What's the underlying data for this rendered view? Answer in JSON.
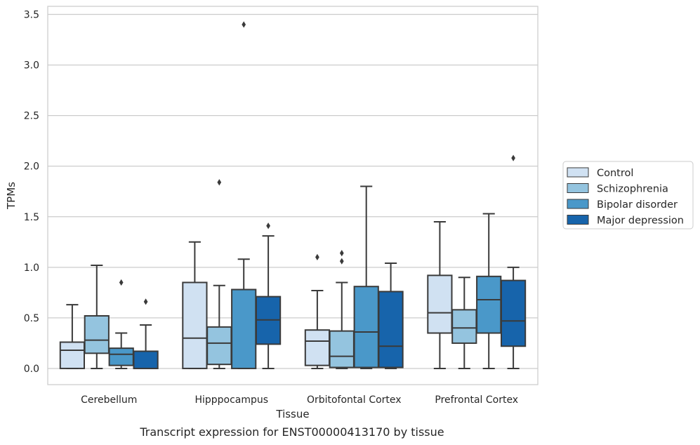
{
  "caption": "Transcript expression for ENST00000413170 by tissue",
  "chart_data": {
    "type": "box",
    "xlabel": "Tissue",
    "ylabel": "TPMs",
    "ylim": [
      -0.16,
      3.58
    ],
    "yticks": [
      "0.0",
      "0.5",
      "1.0",
      "1.5",
      "2.0",
      "2.5",
      "3.0",
      "3.5"
    ],
    "grid": "horizontal",
    "legend_position": "right",
    "categories": [
      "Cerebellum",
      "Hipppocampus",
      "Orbitofontal Cortex",
      "Prefrontal Cortex"
    ],
    "series": [
      {
        "name": "Control",
        "color": "#d0e1f2",
        "boxes": [
          {
            "whisker_low": 0,
            "q1": 0,
            "median": 0.18,
            "q3": 0.26,
            "whisker_high": 0.63,
            "outliers": []
          },
          {
            "whisker_low": 0,
            "q1": 0,
            "median": 0.3,
            "q3": 0.85,
            "whisker_high": 1.25,
            "outliers": []
          },
          {
            "whisker_low": 0,
            "q1": 0.03,
            "median": 0.27,
            "q3": 0.38,
            "whisker_high": 0.77,
            "outliers": [
              1.1
            ]
          },
          {
            "whisker_low": 0,
            "q1": 0.35,
            "median": 0.55,
            "q3": 0.92,
            "whisker_high": 1.45,
            "outliers": []
          }
        ]
      },
      {
        "name": "Schizophrenia",
        "color": "#94c4df",
        "boxes": [
          {
            "whisker_low": 0,
            "q1": 0.15,
            "median": 0.28,
            "q3": 0.52,
            "whisker_high": 1.02,
            "outliers": []
          },
          {
            "whisker_low": 0,
            "q1": 0.04,
            "median": 0.25,
            "q3": 0.41,
            "whisker_high": 0.82,
            "outliers": [
              1.84
            ]
          },
          {
            "whisker_low": 0,
            "q1": 0.01,
            "median": 0.12,
            "q3": 0.37,
            "whisker_high": 0.85,
            "outliers": [
              1.06,
              1.14
            ]
          },
          {
            "whisker_low": 0,
            "q1": 0.25,
            "median": 0.4,
            "q3": 0.58,
            "whisker_high": 0.9,
            "outliers": []
          }
        ]
      },
      {
        "name": "Bipolar disorder",
        "color": "#4a98c9",
        "boxes": [
          {
            "whisker_low": 0,
            "q1": 0.03,
            "median": 0.14,
            "q3": 0.2,
            "whisker_high": 0.35,
            "outliers": [
              0.85
            ]
          },
          {
            "whisker_low": 0,
            "q1": 0,
            "median": 0.78,
            "q3": 0.78,
            "whisker_high": 1.08,
            "outliers": [
              3.4
            ]
          },
          {
            "whisker_low": 0,
            "q1": 0.01,
            "median": 0.36,
            "q3": 0.81,
            "whisker_high": 1.8,
            "outliers": []
          },
          {
            "whisker_low": 0,
            "q1": 0.35,
            "median": 0.68,
            "q3": 0.91,
            "whisker_high": 1.53,
            "outliers": []
          }
        ]
      },
      {
        "name": "Major depression",
        "color": "#1764ab",
        "boxes": [
          {
            "whisker_low": 0,
            "q1": 0,
            "median": 0,
            "q3": 0.17,
            "whisker_high": 0.43,
            "outliers": [
              0.66
            ]
          },
          {
            "whisker_low": 0,
            "q1": 0.24,
            "median": 0.48,
            "q3": 0.71,
            "whisker_high": 1.31,
            "outliers": [
              1.41
            ]
          },
          {
            "whisker_low": 0,
            "q1": 0.01,
            "median": 0.22,
            "q3": 0.76,
            "whisker_high": 1.04,
            "outliers": []
          },
          {
            "whisker_low": 0,
            "q1": 0.22,
            "median": 0.47,
            "q3": 0.87,
            "whisker_high": 1.0,
            "outliers": [
              2.08
            ]
          }
        ]
      }
    ]
  }
}
